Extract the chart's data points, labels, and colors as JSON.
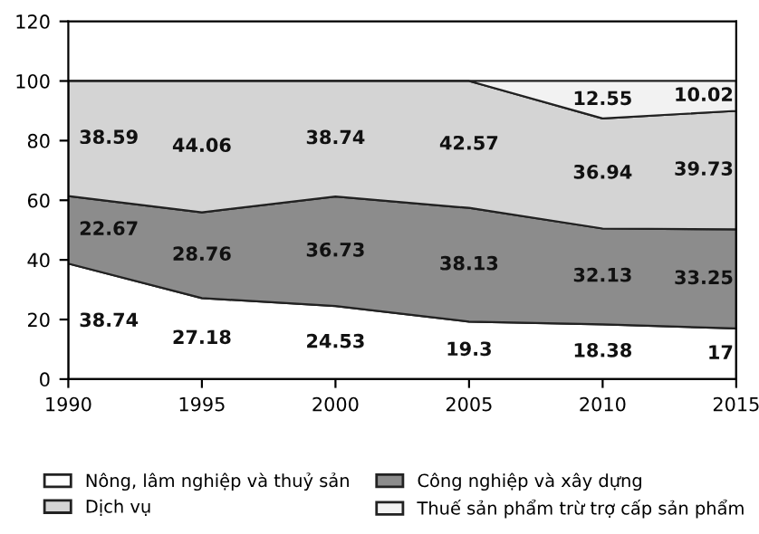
{
  "chart_data": {
    "type": "area",
    "stacked": true,
    "x": [
      1990,
      1995,
      2000,
      2005,
      2010,
      2015
    ],
    "series": [
      {
        "name": "Nông, lâm nghiệp và thuỷ sản",
        "color": "#ffffff",
        "values": [
          38.74,
          27.18,
          24.53,
          19.3,
          18.38,
          17
        ],
        "value_labels": [
          "38.74",
          "27.18",
          "24.53",
          "19.3",
          "18.38",
          "17"
        ]
      },
      {
        "name": "Công nghiệp và xây dựng",
        "color": "#8c8c8c",
        "values": [
          22.67,
          28.76,
          36.73,
          38.13,
          32.13,
          33.25
        ],
        "value_labels": [
          "22.67",
          "28.76",
          "36.73",
          "38.13",
          "32.13",
          "33.25"
        ]
      },
      {
        "name": "Dịch vụ",
        "color": "#d4d4d4",
        "values": [
          38.59,
          44.06,
          38.74,
          42.57,
          36.94,
          39.73
        ],
        "value_labels": [
          "38.59",
          "44.06",
          "38.74",
          "42.57",
          "36.94",
          "39.73"
        ]
      },
      {
        "name": "Thuế sản phẩm trừ trợ cấp sản phẩm",
        "color": "#f2f2f2",
        "values": [
          0,
          0,
          0,
          0,
          12.55,
          10.02
        ],
        "value_labels": [
          null,
          null,
          null,
          null,
          "12.55",
          "10.02"
        ]
      }
    ],
    "xlim": [
      1990,
      2015
    ],
    "xticks": [
      1990,
      1995,
      2000,
      2005,
      2010,
      2015
    ],
    "ylim": [
      0,
      120
    ],
    "yticks": [
      0,
      20,
      40,
      60,
      80,
      100,
      120
    ],
    "grid": false,
    "legend": "bottom"
  }
}
